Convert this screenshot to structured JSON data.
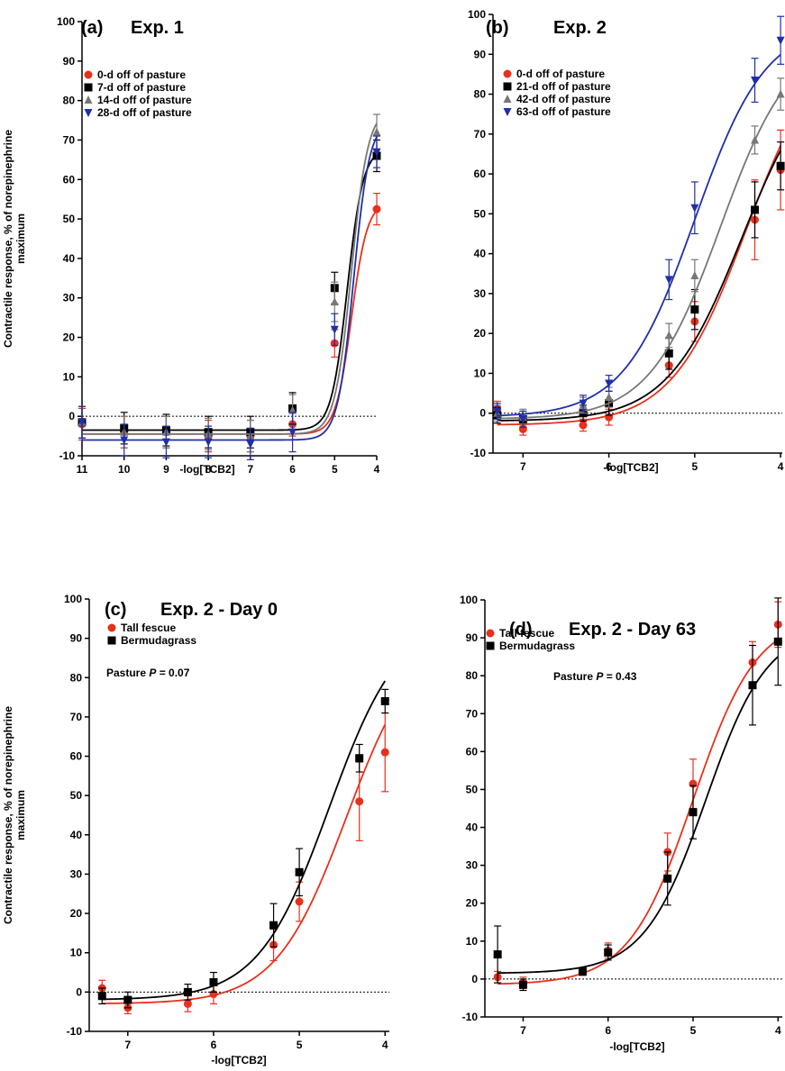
{
  "chart_data": [
    {
      "panel": "a",
      "type": "line",
      "panel_label": "(a)",
      "title": "Exp. 1",
      "xlabel": "-log[TCB2]",
      "ylabel": "Contractile response, % of norepinephrine maximum",
      "xlim": [
        11,
        4
      ],
      "ylim": [
        -10,
        100
      ],
      "xticks": [
        11,
        10,
        9,
        8,
        7,
        6,
        5,
        4
      ],
      "yticks": [
        -10,
        0,
        10,
        20,
        30,
        40,
        50,
        60,
        70,
        80,
        90,
        100
      ],
      "baseline": 0,
      "series": [
        {
          "name": "0-d off of pasture",
          "color": "#e8301c",
          "marker": "circle",
          "x": [
            11,
            10,
            9,
            8,
            7,
            6,
            5,
            4
          ],
          "values": [
            -2,
            -4,
            -4,
            -5,
            -5,
            -2,
            18.5,
            52.5
          ],
          "err": [
            4,
            4,
            4,
            4,
            4,
            3,
            3.5,
            4
          ],
          "bottom": -4.5,
          "top": 54.5,
          "ec50": 4.6,
          "hill": 2.3
        },
        {
          "name": "7-d off of pasture",
          "color": "#000000",
          "marker": "square",
          "x": [
            11,
            10,
            9,
            8,
            7,
            6,
            5,
            4
          ],
          "values": [
            -1.5,
            -3,
            -3.5,
            -4,
            -4,
            2,
            32.5,
            66
          ],
          "err": [
            4,
            4,
            4,
            4,
            4,
            4,
            4,
            4
          ],
          "bottom": -3.5,
          "top": 68,
          "ec50": 4.7,
          "hill": 2.3
        },
        {
          "name": "14-d off of pasture",
          "color": "#777777",
          "marker": "triangle-up",
          "x": [
            11,
            10,
            9,
            8,
            7,
            6,
            5,
            4
          ],
          "values": [
            -1.5,
            -4,
            -4,
            -4.5,
            -5,
            1.5,
            29,
            72
          ],
          "err": [
            4,
            4,
            4,
            4,
            4,
            4,
            5,
            4.5
          ],
          "bottom": -4.5,
          "top": 78,
          "ec50": 4.6,
          "hill": 2.2
        },
        {
          "name": "28-d off of pasture",
          "color": "#1f2fa8",
          "marker": "triangle-down",
          "x": [
            11,
            10,
            9,
            8,
            7,
            6,
            5,
            4
          ],
          "values": [
            -1.5,
            -6,
            -6.5,
            -6.5,
            -7,
            -4,
            22,
            67
          ],
          "err": [
            4,
            4,
            4,
            4,
            4,
            5,
            4,
            4
          ],
          "bottom": -6,
          "top": 75,
          "ec50": 4.55,
          "hill": 2.3
        }
      ]
    },
    {
      "panel": "b",
      "type": "line",
      "panel_label": "(b)",
      "title": "Exp. 2",
      "xlabel": "-log[TCB2]",
      "ylabel": "",
      "xlim": [
        7.35,
        3.98
      ],
      "ylim": [
        -10,
        100
      ],
      "xticks": [
        7,
        6,
        5,
        4
      ],
      "yticks": [
        -10,
        0,
        10,
        20,
        30,
        40,
        50,
        60,
        70,
        80,
        90,
        100
      ],
      "baseline": 0,
      "series": [
        {
          "name": "0-d off of pasture",
          "color": "#e8301c",
          "marker": "circle",
          "x": [
            7.3,
            7,
            6.3,
            6,
            5.3,
            5,
            4.3,
            4
          ],
          "values": [
            1,
            -4,
            -3,
            -1,
            12,
            23,
            48.5,
            61
          ],
          "err": [
            2,
            1.5,
            1.5,
            2,
            3,
            5,
            10,
            10
          ],
          "bottom": -3,
          "top": 95,
          "ec50": 4.4,
          "hill": 1.0
        },
        {
          "name": "21-d off of pasture",
          "color": "#000000",
          "marker": "square",
          "x": [
            7.3,
            7,
            6.3,
            6,
            5.3,
            5,
            4.3,
            4
          ],
          "values": [
            -0.5,
            -1.5,
            0,
            2.5,
            15,
            26,
            51,
            62
          ],
          "err": [
            2,
            2,
            2,
            3,
            4,
            5,
            7,
            6
          ],
          "bottom": -2,
          "top": 90,
          "ec50": 4.45,
          "hill": 1.0
        },
        {
          "name": "42-d off of pasture",
          "color": "#777777",
          "marker": "triangle-up",
          "x": [
            7.3,
            7,
            6.3,
            6,
            5.3,
            5,
            4.3,
            4
          ],
          "values": [
            0,
            -1,
            2,
            4,
            19.5,
            34.5,
            68.5,
            80
          ],
          "err": [
            2,
            2,
            2,
            2.5,
            3,
            4,
            3.5,
            4
          ],
          "bottom": -1.5,
          "top": 95,
          "ec50": 4.7,
          "hill": 1.05
        },
        {
          "name": "63-d off of pasture",
          "color": "#1f2fa8",
          "marker": "triangle-down",
          "x": [
            7.3,
            7,
            6.3,
            6,
            5.3,
            5,
            4.3,
            4
          ],
          "values": [
            0.5,
            -1.5,
            2.5,
            7.5,
            33.5,
            51.5,
            83.5,
            93.5
          ],
          "err": [
            2,
            2,
            2,
            2,
            5,
            6.5,
            5.5,
            6
          ],
          "bottom": -1,
          "top": 98,
          "ec50": 5.0,
          "hill": 1.05
        }
      ]
    },
    {
      "panel": "c",
      "type": "line",
      "panel_label": "(c)",
      "title": "Exp. 2 - Day 0",
      "xlabel": "-log[TCB2]",
      "ylabel": "Contractile response, % of norepinephrine maximum",
      "xlim": [
        7.45,
        3.95
      ],
      "ylim": [
        -10,
        100
      ],
      "xticks": [
        7,
        6,
        5,
        4
      ],
      "yticks": [
        -10,
        0,
        10,
        20,
        30,
        40,
        50,
        60,
        70,
        80,
        90,
        100
      ],
      "baseline": 0,
      "annotation": {
        "prefix": "Pasture ",
        "italic": "P",
        "suffix": " = 0.07"
      },
      "series": [
        {
          "name": "Tall fescue",
          "color": "#e8301c",
          "marker": "circle",
          "x": [
            7.3,
            7,
            6.3,
            6,
            5.3,
            5,
            4.3,
            4
          ],
          "values": [
            1,
            -4,
            -3,
            -0.5,
            12,
            23,
            48.5,
            61
          ],
          "err": [
            2,
            1.5,
            2,
            2.5,
            4,
            5,
            10,
            10
          ],
          "bottom": -3,
          "top": 92,
          "ec50": 4.45,
          "hill": 1.05
        },
        {
          "name": "Bermudagrass",
          "color": "#000000",
          "marker": "square",
          "x": [
            7.3,
            7,
            6.3,
            6,
            5.3,
            5,
            4.3,
            4
          ],
          "values": [
            -1,
            -2,
            0,
            2.5,
            17,
            30.5,
            59.5,
            74
          ],
          "err": [
            2,
            2,
            2,
            2.5,
            5.5,
            6,
            3.5,
            3
          ],
          "bottom": -2,
          "top": 96,
          "ec50": 4.65,
          "hill": 1.05
        }
      ]
    },
    {
      "panel": "d",
      "type": "line",
      "panel_label": "(d)",
      "title": "Exp. 2 - Day 63",
      "xlabel": "-log[TCB2]",
      "ylabel": "",
      "xlim": [
        7.45,
        3.95
      ],
      "ylim": [
        -10,
        100
      ],
      "xticks": [
        7,
        6,
        5,
        4
      ],
      "yticks": [
        -10,
        0,
        10,
        20,
        30,
        40,
        50,
        60,
        70,
        80,
        90,
        100
      ],
      "baseline": 0,
      "annotation": {
        "prefix": "Pasture ",
        "italic": "P",
        "suffix": " = 0.43"
      },
      "series": [
        {
          "name": "Tall fescue",
          "color": "#e8301c",
          "marker": "circle",
          "x": [
            7.3,
            7,
            6.3,
            6,
            5.3,
            5,
            4.3,
            4
          ],
          "values": [
            0.5,
            -1,
            2,
            7.5,
            33.5,
            51.5,
            83.5,
            93.5
          ],
          "err": [
            1.5,
            1.5,
            1,
            2,
            5,
            6.5,
            5.5,
            6
          ],
          "bottom": -1.5,
          "top": 96,
          "ec50": 5.0,
          "hill": 1.15
        },
        {
          "name": "Bermudagrass",
          "color": "#000000",
          "marker": "square",
          "x": [
            7.3,
            7,
            6.3,
            6,
            5.3,
            5,
            4.3,
            4
          ],
          "values": [
            6.5,
            -1.5,
            2,
            7,
            26.5,
            44,
            77.5,
            89
          ],
          "err": [
            7.5,
            1.5,
            1,
            2,
            7,
            7,
            10.5,
            11.5
          ],
          "bottom": 1.5,
          "top": 93,
          "ec50": 4.85,
          "hill": 1.2
        }
      ]
    }
  ]
}
